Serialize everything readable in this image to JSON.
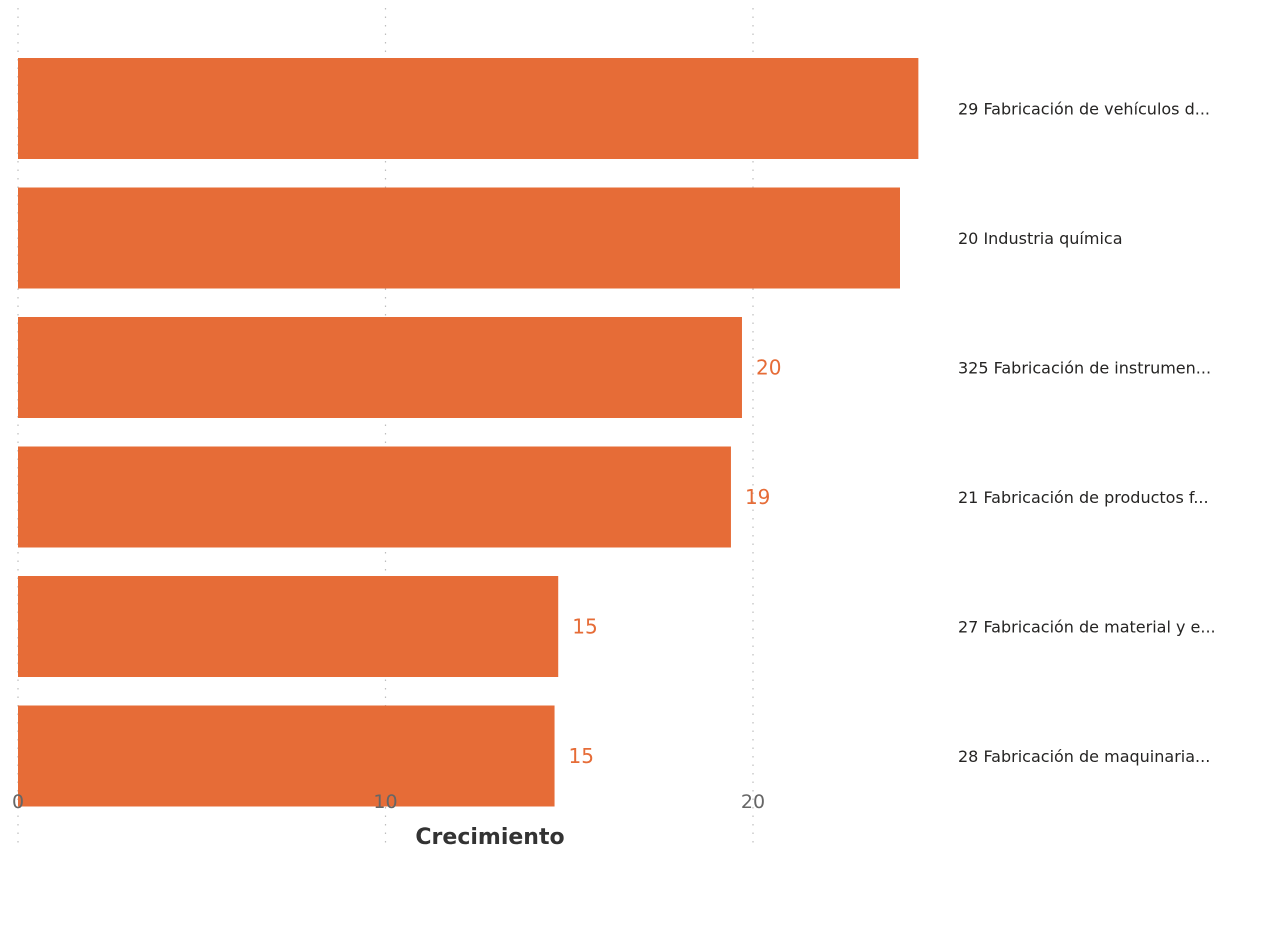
{
  "chart_data": {
    "type": "bar",
    "orientation": "horizontal",
    "categories": [
      "29 Fabricación de vehículos d...",
      "20 Industria química",
      "325 Fabricación de instrumen...",
      "21 Fabricación de productos f...",
      "27 Fabricación de material y e...",
      "28 Fabricación de maquinaria..."
    ],
    "values": [
      24.5,
      24.0,
      19.7,
      19.4,
      14.7,
      14.6
    ],
    "data_labels": [
      "",
      "",
      "20",
      "19",
      "15",
      "15"
    ],
    "xlabel": "Crecimiento",
    "xticks": [
      "0",
      "10",
      "20"
    ],
    "xlim": [
      0,
      25
    ],
    "grid": true,
    "bar_color": "#E66C37",
    "label_position": "right"
  }
}
